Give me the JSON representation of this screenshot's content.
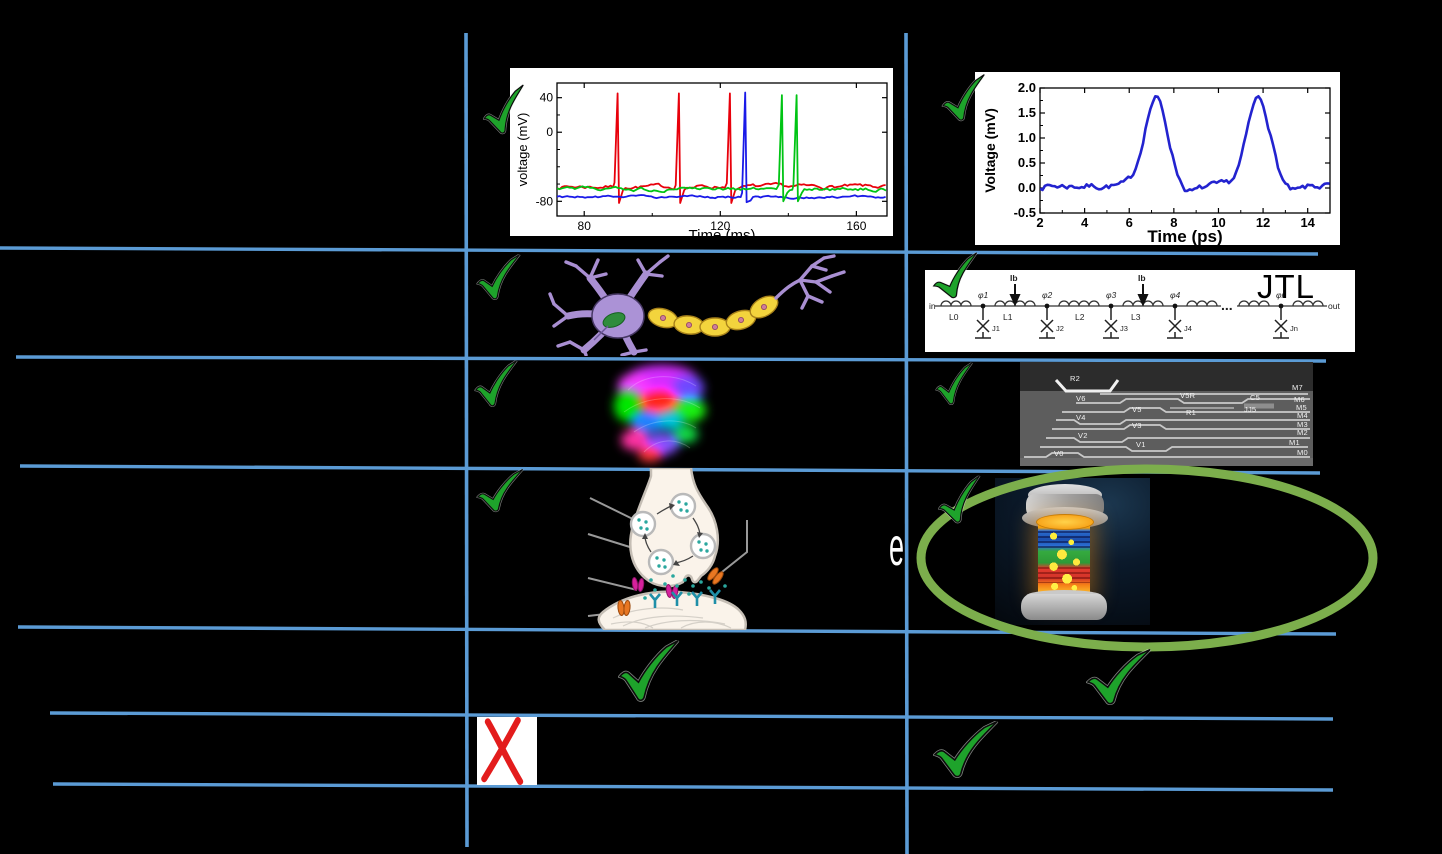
{
  "slide": {
    "background": "#000000",
    "grid_color": "#5B9BD5",
    "check_color": "#1EA32B",
    "cross_color": "#E31C1C",
    "ellipse_color": "#7CAE4C",
    "stray_letter": "e",
    "comparison": {
      "rows": [
        {
          "name": "spiking-waveforms",
          "middle": "check",
          "right": "check"
        },
        {
          "name": "neuron-vs-jtl",
          "middle": "check",
          "right": "check"
        },
        {
          "name": "brain-vs-chip-cross-section",
          "middle": "check",
          "right": "check"
        },
        {
          "name": "synapse-vs-device",
          "middle": "check",
          "right": "check"
        },
        {
          "name": "row-five",
          "middle": "check",
          "right": "check"
        },
        {
          "name": "row-six",
          "middle": "cross",
          "right": "check"
        }
      ]
    }
  },
  "jtl": {
    "title": "JTL",
    "in_label": "in",
    "out_label": "out",
    "bias_label": "Ib",
    "dots": "...",
    "inductors": [
      "L0",
      "L1",
      "L2",
      "L3"
    ],
    "nodes": [
      "φ1",
      "φ2",
      "φ3",
      "φ4",
      "φn"
    ],
    "junctions": [
      "J1",
      "J2",
      "J3",
      "J4",
      "Jn"
    ]
  },
  "sem": {
    "labels": [
      "R2",
      "M7",
      "V6",
      "V5R",
      "C5",
      "M6",
      "V5",
      "R1",
      "JJ5",
      "M5",
      "V4",
      "M4",
      "V3",
      "M3",
      "V2",
      "M2",
      "V1",
      "M1",
      "V0",
      "M0"
    ]
  },
  "chart_data": [
    {
      "id": "bio-spikes",
      "type": "line",
      "title": "",
      "xlabel": "Time (ms)",
      "ylabel": "voltage (mV)",
      "xlim": [
        72,
        169
      ],
      "ylim": [
        -97,
        57
      ],
      "xticks": [
        80,
        120,
        160
      ],
      "yticks": [
        40,
        0,
        -80
      ],
      "series": [
        {
          "name": "neuron-red",
          "color": "#e8000b",
          "baseline": -63,
          "peak": 45,
          "undershoot": -82,
          "spike_times": [
            90,
            108,
            123
          ]
        },
        {
          "name": "neuron-blue",
          "color": "#1a1ae8",
          "baseline": -75,
          "peak": 46,
          "undershoot": -81,
          "spike_times": [
            127.5
          ]
        },
        {
          "name": "neuron-green",
          "color": "#00c414",
          "baseline": -66,
          "peak": 43,
          "undershoot": -80,
          "spike_times": [
            138.3,
            142.6
          ]
        }
      ]
    },
    {
      "id": "sfq-pulses",
      "type": "line",
      "title": "",
      "xlabel": "Time (ps)",
      "ylabel": "Voltage (mV)",
      "xlim": [
        2,
        15
      ],
      "ylim": [
        -0.5,
        2.0
      ],
      "xticks": [
        2,
        4,
        6,
        8,
        10,
        12,
        14
      ],
      "yticks": [
        2.0,
        1.5,
        1.0,
        0.5,
        0.0,
        -0.5
      ],
      "series": [
        {
          "name": "sfq-pulse",
          "color": "#2323cf",
          "baseline": 0.04,
          "peak": 1.76,
          "spike_times": [
            7.2,
            11.8
          ]
        }
      ]
    }
  ]
}
